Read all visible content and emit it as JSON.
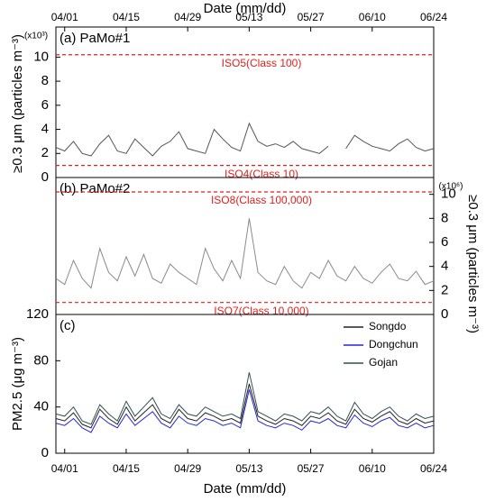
{
  "chart_data": [
    {
      "type": "line",
      "panel_label": "(a) PaMo#1",
      "x_label": "Date (mm/dd)",
      "y_label": "≥0.3 μm (particles m⁻³)",
      "y_multiplier": "(x10³)",
      "x": [
        "03/30",
        "04/01",
        "04/03",
        "04/05",
        "04/07",
        "04/09",
        "04/11",
        "04/13",
        "04/15",
        "04/17",
        "04/19",
        "04/21",
        "04/23",
        "04/25",
        "04/27",
        "04/29",
        "05/01",
        "05/03",
        "05/05",
        "05/07",
        "05/09",
        "05/11",
        "05/13",
        "05/15",
        "05/17",
        "05/19",
        "05/21",
        "05/23",
        "05/25",
        "05/27",
        "05/29",
        "05/31",
        "06/02",
        "06/04",
        "06/06",
        "06/08",
        "06/10",
        "06/12",
        "06/14",
        "06/16",
        "06/18",
        "06/20",
        "06/22",
        "06/24"
      ],
      "series": [
        {
          "name": "PaMo#1",
          "color": "#555555",
          "values": [
            2.5,
            2.2,
            3.0,
            2.0,
            1.8,
            2.8,
            3.5,
            2.2,
            2.0,
            3.2,
            2.5,
            1.8,
            2.6,
            3.0,
            3.8,
            2.4,
            2.2,
            2.0,
            4.0,
            3.2,
            2.5,
            2.2,
            4.5,
            3.0,
            2.6,
            2.8,
            2.5,
            3.0,
            2.4,
            2.2,
            2.0,
            2.6,
            null,
            2.4,
            3.5,
            3.0,
            2.6,
            2.4,
            2.2,
            2.8,
            3.2,
            2.5,
            2.2,
            2.4
          ]
        }
      ],
      "ref_lines": [
        {
          "value": 10.2,
          "label": "ISO5(Class 100)"
        },
        {
          "value": 1.0,
          "label": "ISO4(Class 10)"
        }
      ],
      "ref_color": "#e0201b",
      "xlim": [
        "03/30",
        "06/24"
      ],
      "xticks": [
        "04/01",
        "04/15",
        "04/29",
        "05/13",
        "05/27",
        "06/10",
        "06/24"
      ],
      "ylim": [
        0,
        12.5
      ],
      "yticks": [
        0,
        2,
        4,
        6,
        8,
        10
      ]
    },
    {
      "type": "line",
      "panel_label": "(b) PaMo#2",
      "y_label": "≥0.3 μm (particles m⁻³)",
      "y_multiplier": "(x10⁶)",
      "x": [
        "03/30",
        "04/01",
        "04/03",
        "04/05",
        "04/07",
        "04/09",
        "04/11",
        "04/13",
        "04/15",
        "04/17",
        "04/19",
        "04/21",
        "04/23",
        "04/25",
        "04/27",
        "04/29",
        "05/01",
        "05/03",
        "05/05",
        "05/07",
        "05/09",
        "05/11",
        "05/13",
        "05/15",
        "05/17",
        "05/19",
        "05/21",
        "05/23",
        "05/25",
        "05/27",
        "05/29",
        "05/31",
        "06/02",
        "06/04",
        "06/06",
        "06/08",
        "06/10",
        "06/12",
        "06/14",
        "06/16",
        "06/18",
        "06/20",
        "06/22",
        "06/24"
      ],
      "series": [
        {
          "name": "PaMo#2",
          "color": "#8a8a8a",
          "values": [
            3.0,
            2.5,
            4.5,
            3.0,
            2.2,
            5.5,
            3.5,
            2.8,
            4.8,
            3.2,
            5.0,
            3.0,
            2.6,
            4.2,
            3.5,
            3.0,
            2.5,
            5.5,
            3.8,
            2.8,
            4.5,
            3.0,
            8.0,
            3.5,
            2.8,
            2.5,
            4.0,
            2.8,
            2.2,
            3.5,
            3.0,
            4.5,
            3.2,
            2.8,
            4.0,
            3.0,
            2.6,
            3.5,
            4.2,
            3.0,
            2.8,
            3.6,
            2.5,
            2.8
          ]
        }
      ],
      "ref_lines": [
        {
          "value": 10.2,
          "label": "ISO8(Class 100,000)"
        },
        {
          "value": 1.0,
          "label": "ISO7(Class 10,000)"
        }
      ],
      "ref_color": "#e0201b",
      "xlim": [
        "03/30",
        "06/24"
      ],
      "ylim": [
        0,
        11.4
      ],
      "yticks": [
        0,
        2,
        4,
        6,
        8,
        10
      ]
    },
    {
      "type": "line",
      "panel_label": "(c)",
      "x_label": "Date (mm/dd)",
      "y_label": "PM2.5 (μg m⁻³)",
      "legend": "upper right",
      "x": [
        "03/30",
        "04/01",
        "04/03",
        "04/05",
        "04/07",
        "04/09",
        "04/11",
        "04/13",
        "04/15",
        "04/17",
        "04/19",
        "04/21",
        "04/23",
        "04/25",
        "04/27",
        "04/29",
        "05/01",
        "05/03",
        "05/05",
        "05/07",
        "05/09",
        "05/11",
        "05/13",
        "05/15",
        "05/17",
        "05/19",
        "05/21",
        "05/23",
        "05/25",
        "05/27",
        "05/29",
        "05/31",
        "06/02",
        "06/04",
        "06/06",
        "06/08",
        "06/10",
        "06/12",
        "06/14",
        "06/16",
        "06/18",
        "06/20",
        "06/22",
        "06/24"
      ],
      "series": [
        {
          "name": "Songdo",
          "color": "#222222",
          "values": [
            30,
            28,
            35,
            25,
            22,
            38,
            30,
            25,
            40,
            28,
            35,
            42,
            30,
            26,
            38,
            30,
            28,
            35,
            32,
            28,
            30,
            26,
            60,
            32,
            28,
            25,
            30,
            28,
            24,
            32,
            30,
            35,
            28,
            25,
            38,
            30,
            27,
            32,
            36,
            28,
            25,
            30,
            26,
            28
          ]
        },
        {
          "name": "Dongchun",
          "color": "#2626d9",
          "values": [
            26,
            24,
            30,
            22,
            18,
            32,
            26,
            22,
            34,
            24,
            30,
            36,
            26,
            22,
            32,
            26,
            24,
            30,
            28,
            24,
            26,
            22,
            55,
            28,
            24,
            22,
            26,
            24,
            20,
            28,
            26,
            30,
            24,
            22,
            33,
            26,
            23,
            28,
            31,
            24,
            22,
            26,
            22,
            24
          ]
        },
        {
          "name": "Gojan",
          "color": "#2f5050",
          "values": [
            34,
            32,
            40,
            28,
            25,
            42,
            34,
            28,
            45,
            32,
            40,
            48,
            34,
            30,
            42,
            34,
            32,
            40,
            36,
            32,
            34,
            30,
            70,
            36,
            32,
            28,
            34,
            32,
            28,
            36,
            34,
            40,
            32,
            28,
            44,
            34,
            30,
            36,
            40,
            32,
            28,
            34,
            30,
            32
          ]
        }
      ],
      "xlim": [
        "03/30",
        "06/24"
      ],
      "xticks": [
        "04/01",
        "04/15",
        "04/29",
        "05/13",
        "05/27",
        "06/10",
        "06/24"
      ],
      "ylim": [
        0,
        120
      ],
      "yticks": [
        0,
        40,
        80,
        120
      ]
    }
  ]
}
